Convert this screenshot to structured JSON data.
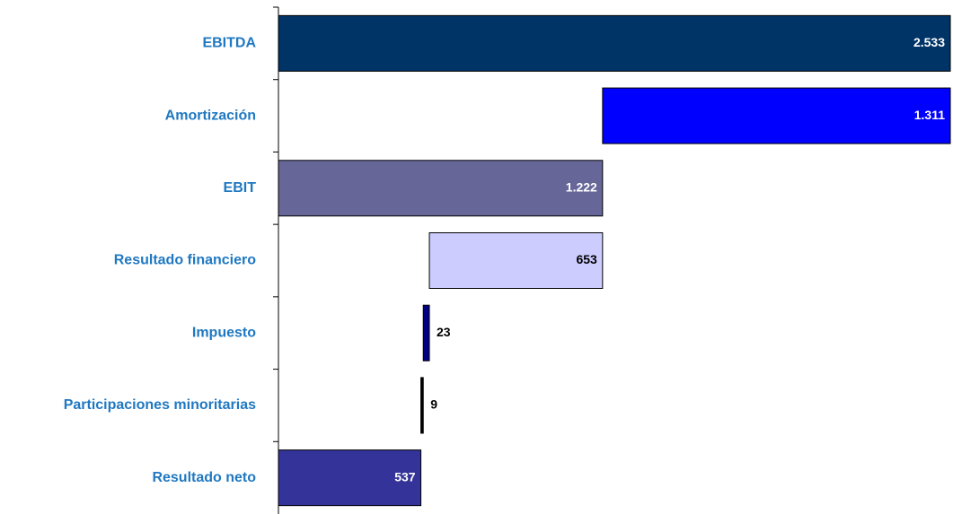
{
  "chart_data": {
    "type": "waterfall",
    "categories": [
      "EBITDA",
      "Amortización",
      "EBIT",
      "Resultado financiero",
      "Impuesto",
      "Participaciones minoritarias",
      "Resultado neto"
    ],
    "values": [
      2533,
      1311,
      1222,
      653,
      23,
      9,
      537
    ],
    "value_labels": [
      "2.533",
      "1.311",
      "1.222",
      "653",
      "23",
      "9",
      "537"
    ],
    "measures": [
      "total",
      "decrease",
      "total",
      "decrease",
      "decrease",
      "decrease",
      "total"
    ],
    "colors": [
      "#003366",
      "#0000ff",
      "#666699",
      "#ccccff",
      "#000080",
      "#000000",
      "#333399"
    ],
    "label_colors": [
      "#ffffff",
      "#ffffff",
      "#ffffff",
      "#000000",
      "#000000",
      "#000000",
      "#ffffff"
    ],
    "xlim": [
      0,
      2533
    ]
  }
}
